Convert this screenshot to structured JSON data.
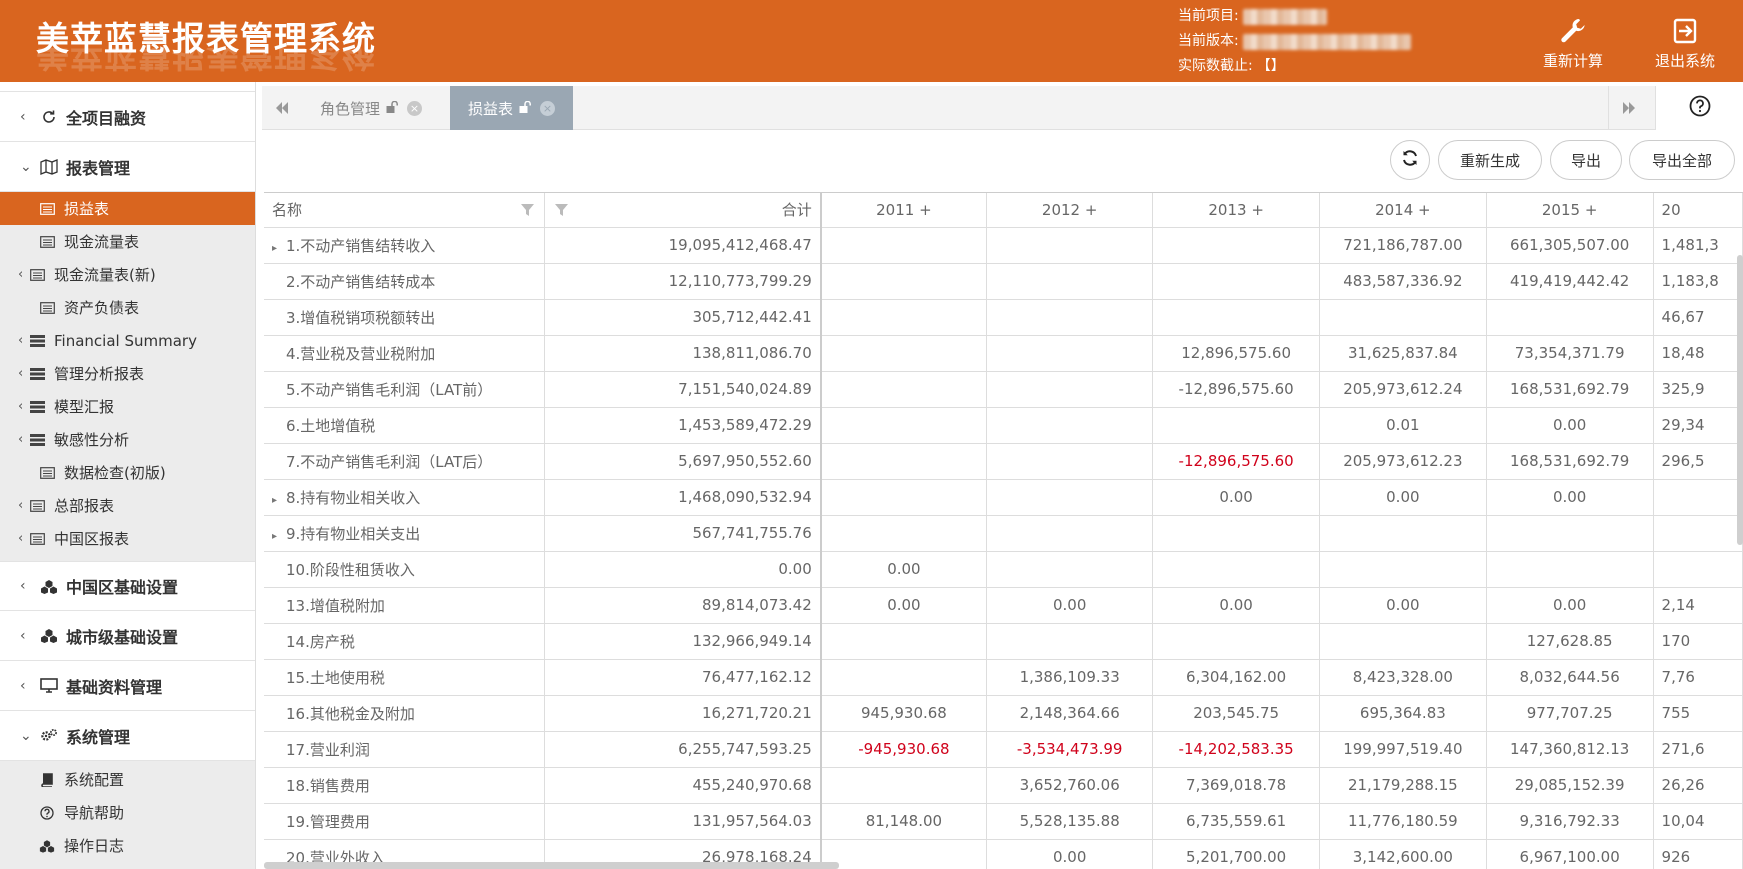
{
  "header": {
    "title": "美苹蓝慧报表管理系统",
    "project_label": "当前项目:",
    "version_label": "当前版本:",
    "cutoff_label": "实际数截止:",
    "cutoff_value": "【】",
    "recalc_label": "重新计算",
    "logout_label": "退出系统"
  },
  "sidebar": {
    "groups": [
      {
        "label": "全项目融资",
        "icon": "refresh-circle-icon"
      },
      {
        "label": "报表管理",
        "icon": "map-icon"
      },
      {
        "label": "中国区基础设置",
        "icon": "cubes-icon"
      },
      {
        "label": "城市级基础设置",
        "icon": "cubes-icon"
      },
      {
        "label": "基础资料管理",
        "icon": "monitor-icon"
      },
      {
        "label": "系统管理",
        "icon": "gears-icon"
      }
    ],
    "report_items": [
      {
        "label": "损益表"
      },
      {
        "label": "现金流量表"
      },
      {
        "label": "现金流量表(新)"
      },
      {
        "label": "资产负债表"
      },
      {
        "label": "Financial Summary"
      },
      {
        "label": "管理分析报表"
      },
      {
        "label": "模型汇报"
      },
      {
        "label": "敏感性分析"
      },
      {
        "label": "数据检查(初版)"
      },
      {
        "label": "总部报表"
      },
      {
        "label": "中国区报表"
      }
    ],
    "system_items": [
      {
        "label": "系统配置"
      },
      {
        "label": "导航帮助"
      },
      {
        "label": "操作日志"
      }
    ]
  },
  "tabs": [
    {
      "label": "角色管理"
    },
    {
      "label": "损益表"
    }
  ],
  "toolbar": {
    "regenerate": "重新生成",
    "export": "导出",
    "export_all": "导出全部"
  },
  "table": {
    "headers": {
      "name": "名称",
      "total": "合计",
      "years": [
        "2011 +",
        "2012 +",
        "2013 +",
        "2014 +",
        "2015 +",
        "20"
      ]
    },
    "rows": [
      {
        "name": "1.不动产销售结转收入",
        "expand": true,
        "total": "19,095,412,468.47",
        "cells": [
          "",
          "",
          "",
          "721,186,787.00",
          "661,305,507.00",
          "1,481,3"
        ]
      },
      {
        "name": "2.不动产销售结转成本",
        "expand": false,
        "total": "12,110,773,799.29",
        "cells": [
          "",
          "",
          "",
          "483,587,336.92",
          "419,419,442.42",
          "1,183,8"
        ]
      },
      {
        "name": "3.增值税销项税额转出",
        "expand": false,
        "total": "305,712,442.41",
        "cells": [
          "",
          "",
          "",
          "",
          "",
          "46,67"
        ]
      },
      {
        "name": "4.营业税及营业税附加",
        "expand": false,
        "total": "138,811,086.70",
        "cells": [
          "",
          "",
          "12,896,575.60",
          "31,625,837.84",
          "73,354,371.79",
          "18,48"
        ]
      },
      {
        "name": "5.不动产销售毛利润（LAT前）",
        "expand": false,
        "total": "7,151,540,024.89",
        "cells": [
          "",
          "",
          "-12,896,575.60",
          "205,973,612.24",
          "168,531,692.79",
          "325,9"
        ]
      },
      {
        "name": "6.土地增值税",
        "expand": false,
        "total": "1,453,589,472.29",
        "cells": [
          "",
          "",
          "",
          "0.01",
          "0.00",
          "29,34"
        ]
      },
      {
        "name": "7.不动产销售毛利润（LAT后）",
        "expand": false,
        "total": "5,697,950,552.60",
        "cells": [
          "",
          "",
          "-12,896,575.60",
          "205,973,612.23",
          "168,531,692.79",
          "296,5"
        ],
        "neg": [
          2
        ]
      },
      {
        "name": "8.持有物业相关收入",
        "expand": true,
        "total": "1,468,090,532.94",
        "cells": [
          "",
          "",
          "0.00",
          "0.00",
          "0.00",
          ""
        ]
      },
      {
        "name": "9.持有物业相关支出",
        "expand": true,
        "total": "567,741,755.76",
        "cells": [
          "",
          "",
          "",
          "",
          "",
          ""
        ]
      },
      {
        "name": "10.阶段性租赁收入",
        "expand": false,
        "total": "0.00",
        "cells": [
          "0.00",
          "",
          "",
          "",
          "",
          ""
        ]
      },
      {
        "name": "13.增值税附加",
        "expand": false,
        "total": "89,814,073.42",
        "cells": [
          "0.00",
          "0.00",
          "0.00",
          "0.00",
          "0.00",
          "2,14"
        ]
      },
      {
        "name": "14.房产税",
        "expand": false,
        "total": "132,966,949.14",
        "cells": [
          "",
          "",
          "",
          "",
          "127,628.85",
          "170"
        ]
      },
      {
        "name": "15.土地使用税",
        "expand": false,
        "total": "76,477,162.12",
        "cells": [
          "",
          "1,386,109.33",
          "6,304,162.00",
          "8,423,328.00",
          "8,032,644.56",
          "7,76"
        ]
      },
      {
        "name": "16.其他税金及附加",
        "expand": false,
        "total": "16,271,720.21",
        "cells": [
          "945,930.68",
          "2,148,364.66",
          "203,545.75",
          "695,364.83",
          "977,707.25",
          "755"
        ]
      },
      {
        "name": "17.营业利润",
        "expand": false,
        "total": "6,255,747,593.25",
        "cells": [
          "-945,930.68",
          "-3,534,473.99",
          "-14,202,583.35",
          "199,997,519.40",
          "147,360,812.13",
          "271,6"
        ],
        "neg": [
          0,
          1,
          2
        ]
      },
      {
        "name": "18.销售费用",
        "expand": false,
        "total": "455,240,970.68",
        "cells": [
          "",
          "3,652,760.06",
          "7,369,018.78",
          "21,179,288.15",
          "29,085,152.39",
          "26,26"
        ]
      },
      {
        "name": "19.管理费用",
        "expand": false,
        "total": "131,957,564.03",
        "cells": [
          "81,148.00",
          "5,528,135.88",
          "6,735,559.61",
          "11,776,180.59",
          "9,316,792.33",
          "10,04"
        ]
      },
      {
        "name": "20.营业外收入",
        "expand": false,
        "total": "26,978,168.24",
        "cells": [
          "",
          "0.00",
          "5,201,700.00",
          "3,142,600.00",
          "6,967,100.00",
          "926"
        ]
      }
    ]
  }
}
